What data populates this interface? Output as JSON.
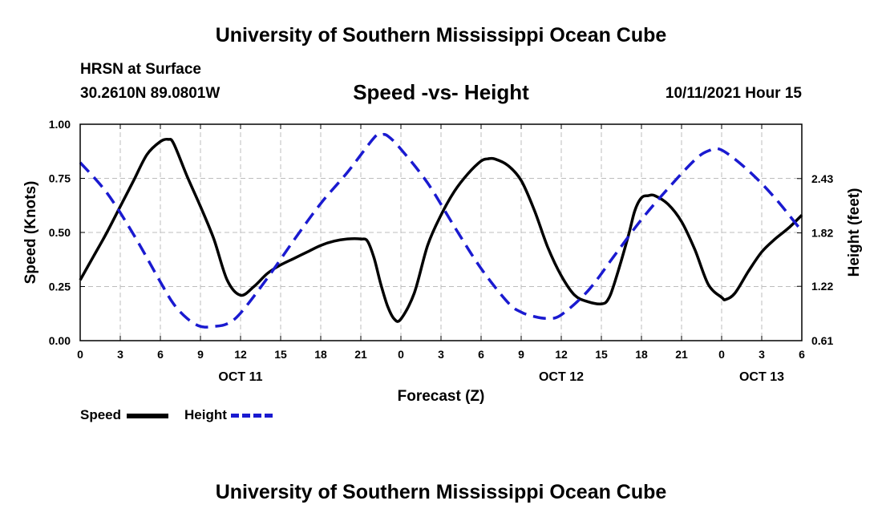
{
  "header": {
    "title": "University of Southern Mississippi Ocean Cube",
    "station": "HRSN at Surface",
    "coords": "30.2610N  89.0801W",
    "chart_title": "Speed -vs- Height",
    "datetime": "10/11/2021 Hour 15"
  },
  "footer": {
    "title": "University of Southern Mississippi Ocean Cube"
  },
  "colors": {
    "speed": "#000000",
    "height": "#1a1ad0",
    "grid": "#bdbdbd"
  },
  "chart_data": {
    "type": "line",
    "title": "Speed -vs- Height",
    "xlabel": "Forecast (Z)",
    "ylabel": "Speed (Knots)",
    "y2label": "Height (feet)",
    "x_range": [
      0,
      54
    ],
    "ylim": [
      0,
      1
    ],
    "y2lim": [
      0.61,
      3.04
    ],
    "x_ticks": [
      {
        "x": 0,
        "label": "0"
      },
      {
        "x": 3,
        "label": "3"
      },
      {
        "x": 6,
        "label": "6"
      },
      {
        "x": 9,
        "label": "9"
      },
      {
        "x": 12,
        "label": "12"
      },
      {
        "x": 15,
        "label": "15"
      },
      {
        "x": 18,
        "label": "18"
      },
      {
        "x": 21,
        "label": "21"
      },
      {
        "x": 24,
        "label": "0"
      },
      {
        "x": 27,
        "label": "3"
      },
      {
        "x": 30,
        "label": "6"
      },
      {
        "x": 33,
        "label": "9"
      },
      {
        "x": 36,
        "label": "12"
      },
      {
        "x": 39,
        "label": "15"
      },
      {
        "x": 42,
        "label": "18"
      },
      {
        "x": 45,
        "label": "21"
      },
      {
        "x": 48,
        "label": "0"
      },
      {
        "x": 51,
        "label": "3"
      },
      {
        "x": 54,
        "label": "6"
      }
    ],
    "date_labels": [
      {
        "x": 12,
        "label": "OCT 11"
      },
      {
        "x": 36,
        "label": "OCT 12"
      },
      {
        "x": 51,
        "label": "OCT 13"
      }
    ],
    "y_ticks": [
      {
        "v": 0,
        "label": "0.00"
      },
      {
        "v": 0.25,
        "label": "0.25"
      },
      {
        "v": 0.5,
        "label": "0.50"
      },
      {
        "v": 0.75,
        "label": "0.75"
      },
      {
        "v": 1,
        "label": "1.00"
      }
    ],
    "y2_ticks": [
      {
        "v": 0.61,
        "label": "0.61"
      },
      {
        "v": 1.22,
        "label": "1.22"
      },
      {
        "v": 1.82,
        "label": "1.82"
      },
      {
        "v": 2.43,
        "label": "2.43"
      }
    ],
    "series": [
      {
        "name": "Speed",
        "axis": "left",
        "style": "solid",
        "x": [
          0,
          1,
          2,
          3,
          4,
          5,
          6,
          6.6,
          7,
          8,
          9,
          10,
          11,
          12,
          13,
          14,
          15,
          16,
          17,
          18,
          19,
          20,
          21,
          21.5,
          22,
          22.5,
          23,
          23.5,
          24,
          25,
          26,
          27,
          28,
          29,
          30,
          30.5,
          31,
          32,
          33,
          34,
          35,
          36,
          37,
          38,
          39,
          39.5,
          40,
          41,
          41.5,
          42,
          42.5,
          43,
          44,
          45,
          46,
          47,
          48,
          48.3,
          49,
          50,
          51,
          52,
          53,
          54
        ],
        "values": [
          0.28,
          0.39,
          0.5,
          0.62,
          0.74,
          0.86,
          0.92,
          0.93,
          0.91,
          0.76,
          0.62,
          0.47,
          0.28,
          0.21,
          0.25,
          0.31,
          0.35,
          0.38,
          0.41,
          0.44,
          0.46,
          0.47,
          0.47,
          0.46,
          0.38,
          0.26,
          0.16,
          0.1,
          0.1,
          0.22,
          0.44,
          0.58,
          0.69,
          0.77,
          0.83,
          0.84,
          0.84,
          0.81,
          0.74,
          0.6,
          0.43,
          0.3,
          0.21,
          0.18,
          0.17,
          0.19,
          0.27,
          0.48,
          0.6,
          0.66,
          0.67,
          0.67,
          0.63,
          0.55,
          0.42,
          0.26,
          0.2,
          0.19,
          0.22,
          0.32,
          0.41,
          0.47,
          0.52,
          0.58
        ]
      },
      {
        "name": "Height",
        "axis": "right",
        "style": "dashed",
        "x": [
          0,
          2,
          4,
          6,
          7,
          8,
          9,
          10,
          11,
          12,
          14,
          16,
          18,
          20,
          22,
          22.5,
          23,
          24,
          26,
          28,
          30,
          32,
          33,
          34,
          35,
          36,
          38,
          40,
          42,
          44,
          46,
          47,
          48,
          50,
          52,
          54
        ],
        "values": [
          2.61,
          2.27,
          1.8,
          1.27,
          1.02,
          0.86,
          0.77,
          0.77,
          0.8,
          0.92,
          1.31,
          1.74,
          2.15,
          2.5,
          2.89,
          2.92,
          2.91,
          2.76,
          2.38,
          1.89,
          1.42,
          1.04,
          0.93,
          0.88,
          0.86,
          0.9,
          1.17,
          1.57,
          1.97,
          2.32,
          2.64,
          2.74,
          2.75,
          2.52,
          2.21,
          1.84
        ]
      }
    ]
  },
  "legend": {
    "speed_label": "Speed",
    "height_label": "Height"
  }
}
